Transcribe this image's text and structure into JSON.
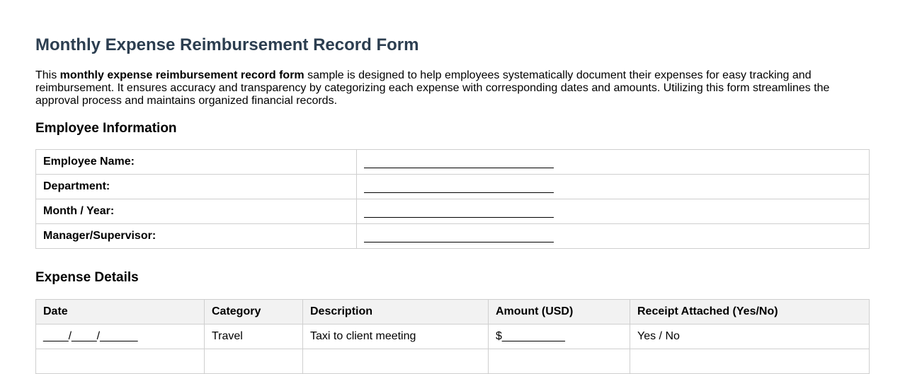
{
  "title": "Monthly Expense Reimbursement Record Form",
  "intro": {
    "prefix": "This ",
    "bold": "monthly expense reimbursement record form",
    "suffix": " sample is designed to help employees systematically document their expenses for easy tracking and reimbursement. It ensures accuracy and transparency by categorizing each expense with corresponding dates and amounts. Utilizing this form streamlines the approval process and maintains organized financial records."
  },
  "employee_section": {
    "heading": "Employee Information",
    "fields": [
      {
        "label": "Employee Name:"
      },
      {
        "label": "Department:"
      },
      {
        "label": "Month / Year:"
      },
      {
        "label": "Manager/Supervisor:"
      }
    ]
  },
  "expense_section": {
    "heading": "Expense Details",
    "columns": [
      "Date",
      "Category",
      "Description",
      "Amount (USD)",
      "Receipt Attached (Yes/No)"
    ],
    "rows": [
      {
        "date": "____/____/______",
        "category": "Travel",
        "description": "Taxi to client meeting",
        "amount": "$__________",
        "receipt": "Yes / No"
      }
    ]
  }
}
